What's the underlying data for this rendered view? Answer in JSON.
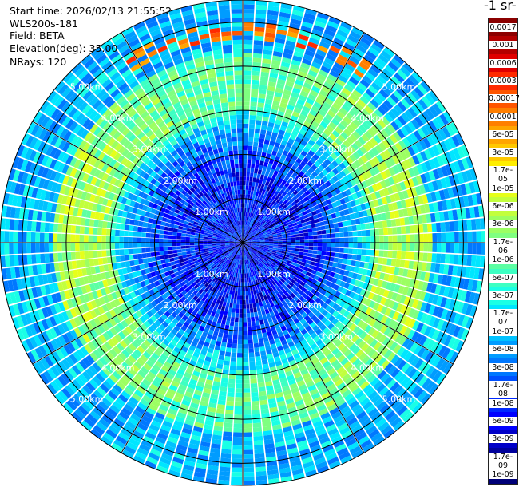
{
  "info": {
    "start_time": "Start time: 2026/02/13 21:55:52",
    "system": "WLS200s-181",
    "field": "Field: BETA",
    "elevation": "Elevation(deg): 35.00",
    "nrays": "NRays: 120"
  },
  "colorbar": {
    "title": "-1 sr-",
    "labels": [
      "0.0017",
      "0.001",
      "0.0006",
      "0.0003",
      "0.00017",
      "0.0001",
      "6e-05",
      "3e-05",
      "1.7e-05",
      "1e-05",
      "6e-06",
      "3e-06",
      "1.7e-06",
      "1e-06",
      "6e-07",
      "3e-07",
      "1.7e-07",
      "1e-07",
      "6e-08",
      "3e-08",
      "1.7e-08",
      "1e-08",
      "6e-09",
      "3e-09",
      "1.7e-09",
      "1e-09"
    ],
    "colors": [
      "#8b0000",
      "#b40000",
      "#e00000",
      "#ff2a00",
      "#ff5500",
      "#ff7f00",
      "#ffa500",
      "#ffc800",
      "#ffee00",
      "#e6ff1a",
      "#c2ff3d",
      "#9cff62",
      "#7fff80",
      "#5cffa3",
      "#3dffc2",
      "#1affe5",
      "#00e6ff",
      "#00c2ff",
      "#009cff",
      "#0078ff",
      "#0050ff",
      "#0028ff",
      "#0000ff",
      "#0000c8",
      "#00009c",
      "#000078"
    ]
  },
  "chart_data": {
    "type": "heatmap",
    "projection": "polar",
    "field": "BETA",
    "elevation_deg": 35.0,
    "nrays": 120,
    "start_time": "2026/02/13 21:55:52",
    "r_max_km": 5.5,
    "range_rings_km": [
      1.0,
      2.0,
      3.0,
      4.0,
      5.0
    ],
    "ring_labels": [
      "1.00km",
      "2.00km",
      "3.00km",
      "4.00km",
      "5.00km"
    ],
    "azimuth_lines_deg": [
      0,
      30,
      60,
      90,
      120,
      150,
      180,
      210,
      240,
      270,
      300,
      330
    ],
    "color_scale": "log",
    "color_range": [
      1e-09,
      0.0017
    ],
    "structure": {
      "inner_band_km": [
        0.0,
        1.5
      ],
      "inner_band_level": 1e-08,
      "middle_band_km": [
        1.5,
        3.0
      ],
      "middle_band_level": 3e-08,
      "ring_band_km": [
        3.0,
        4.3
      ],
      "ring_band_level": 1.7e-06,
      "outer_band_km": [
        4.3,
        5.5
      ],
      "outer_band_level": 1e-07,
      "max_patch_level": 0.0003
    }
  }
}
